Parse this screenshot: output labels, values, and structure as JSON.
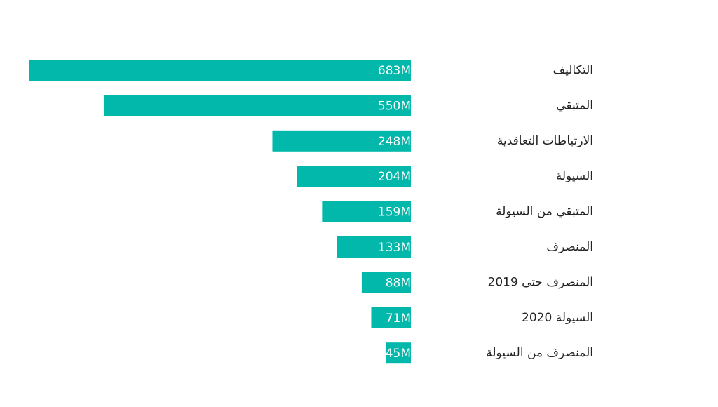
{
  "chart_data": {
    "type": "bar",
    "orientation": "horizontal",
    "direction": "rtl",
    "categories": [
      "التكاليف",
      "المتبقي",
      "الارتباطات التعاقدية",
      "السيولة",
      "المتبقي من السيولة",
      "المنصرف",
      "المنصرف حتى 2019",
      "السيولة 2020",
      "المنصرف من السيولة"
    ],
    "values": [
      683,
      550,
      248,
      204,
      159,
      133,
      88,
      71,
      45
    ],
    "value_labels": [
      "683M",
      "550M",
      "248M",
      "204M",
      "159M",
      "133M",
      "88M",
      "71M",
      "45M"
    ],
    "color": "#01b8aa"
  }
}
